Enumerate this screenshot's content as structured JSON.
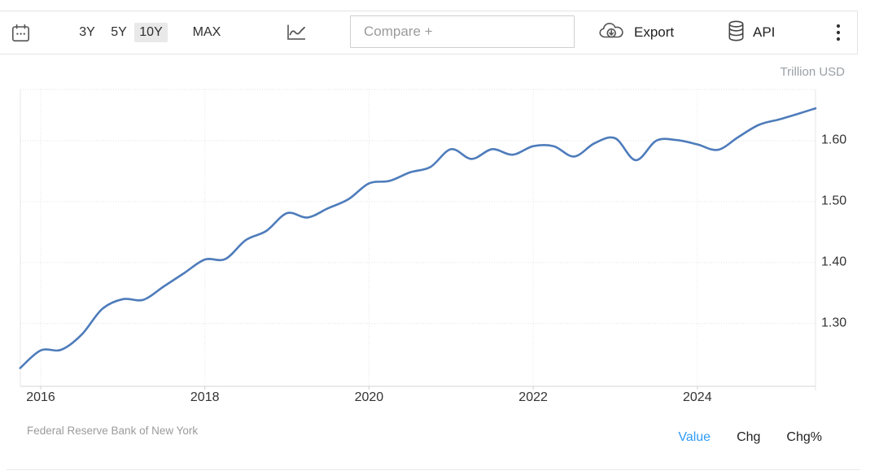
{
  "toolbar": {
    "calendar_icon": "calendar-icon",
    "ranges": [
      {
        "label": "3Y",
        "selected": false
      },
      {
        "label": "5Y",
        "selected": false
      },
      {
        "label": "10Y",
        "selected": true
      },
      {
        "label": "MAX",
        "selected": false
      }
    ],
    "chart_type_icon": "line-chart-icon",
    "compare_placeholder": "Compare +",
    "export_label": "Export",
    "export_icon": "cloud-download-icon",
    "api_label": "API",
    "api_icon": "database-icon",
    "menu_icon": "vertical-dots-icon"
  },
  "legend": {
    "items": [
      {
        "label": "Value",
        "active": true
      },
      {
        "label": "Chg",
        "active": false
      },
      {
        "label": "Chg%",
        "active": false
      }
    ]
  },
  "colors": {
    "line": "#4e7cbb",
    "active_legend": "#2f9bf5",
    "selected_range_bg": "#e9e9e9",
    "grid": "#e2e2e2",
    "axis_text": "#333333",
    "muted_text": "#9b9b9b"
  },
  "chart_data": {
    "type": "line",
    "unit": "Trillion USD",
    "source": "Federal Reserve Bank of New York",
    "line_color": "#4e7cbb",
    "grid": true,
    "legend_position": "bottom-right",
    "x": [
      2015.75,
      2016,
      2016.25,
      2016.5,
      2016.75,
      2017,
      2017.25,
      2017.5,
      2017.75,
      2018,
      2018.25,
      2018.5,
      2018.75,
      2019,
      2019.25,
      2019.5,
      2019.75,
      2020,
      2020.25,
      2020.5,
      2020.75,
      2021,
      2021.25,
      2021.5,
      2021.75,
      2022,
      2022.25,
      2022.5,
      2022.75,
      2023,
      2023.25,
      2023.5,
      2023.75,
      2024,
      2024.25,
      2024.5,
      2024.75,
      2025,
      2025.25,
      2025.44
    ],
    "values": [
      1.227,
      1.256,
      1.257,
      1.282,
      1.324,
      1.34,
      1.339,
      1.361,
      1.383,
      1.405,
      1.406,
      1.437,
      1.452,
      1.481,
      1.474,
      1.489,
      1.504,
      1.53,
      1.534,
      1.548,
      1.557,
      1.586,
      1.57,
      1.586,
      1.577,
      1.591,
      1.591,
      1.574,
      1.596,
      1.604,
      1.568,
      1.6,
      1.601,
      1.594,
      1.585,
      1.606,
      1.626,
      1.635,
      1.645,
      1.653
    ],
    "xlim": [
      2015.752,
      2025.44
    ],
    "ylim": [
      1.197,
      1.684
    ],
    "xticks": [
      {
        "value": 2016,
        "label": "2016"
      },
      {
        "value": 2018,
        "label": "2018"
      },
      {
        "value": 2020,
        "label": "2020"
      },
      {
        "value": 2022,
        "label": "2022"
      },
      {
        "value": 2024,
        "label": "2024"
      }
    ],
    "yticks": [
      {
        "value": 1.6,
        "label": "1.60"
      },
      {
        "value": 1.5,
        "label": "1.50"
      },
      {
        "value": 1.4,
        "label": "1.40"
      },
      {
        "value": 1.3,
        "label": "1.30"
      }
    ]
  }
}
